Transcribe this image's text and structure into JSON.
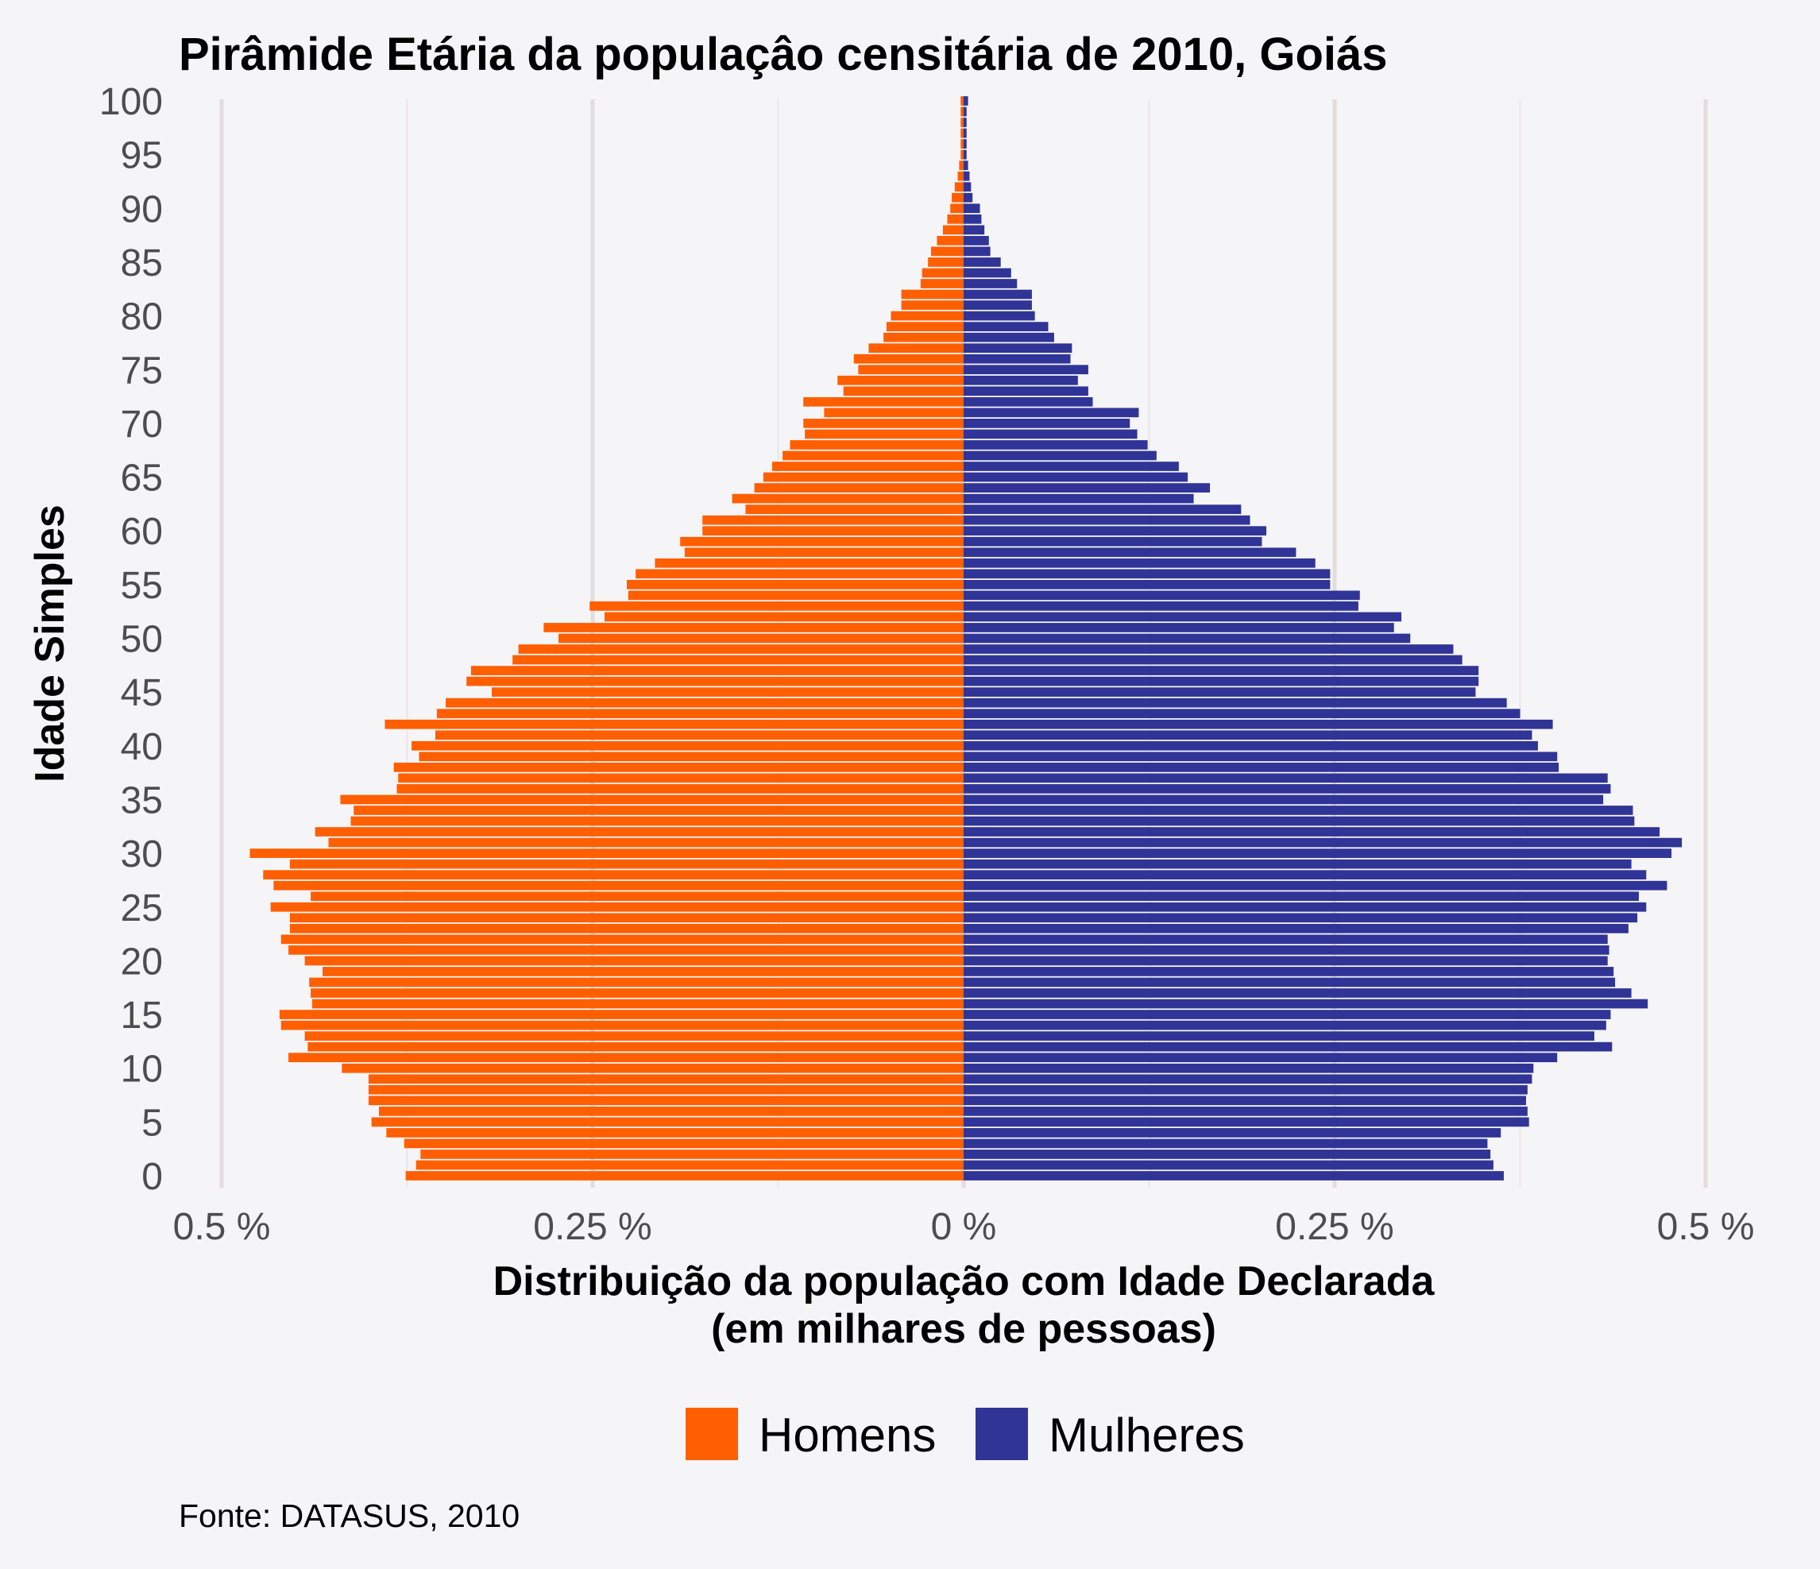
{
  "chart_data": {
    "type": "bar",
    "orientation": "horizontal",
    "title": "Pirâmide Etária da populaçâo censitária de 2010, Goiás",
    "xlabel": "Distribuição da população com Idade Declarada",
    "xlabel_line2": "(em milhares de pessoas)",
    "ylabel": "Idade Simples",
    "caption": "Fonte: DATASUS, 2010",
    "xlim": [
      -0.5,
      0.5
    ],
    "x_ticks": [
      {
        "value": -0.5,
        "label": "0.5 %"
      },
      {
        "value": -0.25,
        "label": "0.25 %"
      },
      {
        "value": 0,
        "label": "0 %"
      },
      {
        "value": 0.25,
        "label": "0.25 %"
      },
      {
        "value": 0.5,
        "label": "0.5 %"
      }
    ],
    "y_ticks": [
      {
        "value": 0,
        "label": "0"
      },
      {
        "value": 5,
        "label": "5"
      },
      {
        "value": 10,
        "label": "10"
      },
      {
        "value": 15,
        "label": "15"
      },
      {
        "value": 20,
        "label": "20"
      },
      {
        "value": 25,
        "label": "25"
      },
      {
        "value": 30,
        "label": "30"
      },
      {
        "value": 35,
        "label": "35"
      },
      {
        "value": 40,
        "label": "40"
      },
      {
        "value": 45,
        "label": "45"
      },
      {
        "value": 50,
        "label": "50"
      },
      {
        "value": 55,
        "label": "55"
      },
      {
        "value": 60,
        "label": "60"
      },
      {
        "value": 65,
        "label": "65"
      },
      {
        "value": 70,
        "label": "70"
      },
      {
        "value": 75,
        "label": "75"
      },
      {
        "value": 80,
        "label": "80"
      },
      {
        "value": 85,
        "label": "85"
      },
      {
        "value": 90,
        "label": "90"
      },
      {
        "value": 95,
        "label": "95"
      },
      {
        "value": 100,
        "label": "100"
      }
    ],
    "grid": true,
    "legend_position": "bottom",
    "ages": [
      0,
      1,
      2,
      3,
      4,
      5,
      6,
      7,
      8,
      9,
      10,
      11,
      12,
      13,
      14,
      15,
      16,
      17,
      18,
      19,
      20,
      21,
      22,
      23,
      24,
      25,
      26,
      27,
      28,
      29,
      30,
      31,
      32,
      33,
      34,
      35,
      36,
      37,
      38,
      39,
      40,
      41,
      42,
      43,
      44,
      45,
      46,
      47,
      48,
      49,
      50,
      51,
      52,
      53,
      54,
      55,
      56,
      57,
      58,
      59,
      60,
      61,
      62,
      63,
      64,
      65,
      66,
      67,
      68,
      69,
      70,
      71,
      72,
      73,
      74,
      75,
      76,
      77,
      78,
      79,
      80,
      81,
      82,
      83,
      84,
      85,
      86,
      87,
      88,
      89,
      90,
      91,
      92,
      93,
      94,
      95,
      96,
      97,
      98,
      99,
      100
    ],
    "series": [
      {
        "name": "Homens",
        "color": "#ff5f00",
        "values": [
          0.376,
          0.369,
          0.366,
          0.377,
          0.389,
          0.399,
          0.394,
          0.401,
          0.401,
          0.401,
          0.419,
          0.455,
          0.442,
          0.444,
          0.46,
          0.461,
          0.439,
          0.44,
          0.441,
          0.432,
          0.444,
          0.455,
          0.46,
          0.454,
          0.454,
          0.467,
          0.44,
          0.465,
          0.472,
          0.454,
          0.481,
          0.428,
          0.437,
          0.413,
          0.411,
          0.42,
          0.382,
          0.381,
          0.384,
          0.367,
          0.372,
          0.356,
          0.39,
          0.355,
          0.349,
          0.318,
          0.335,
          0.332,
          0.304,
          0.3,
          0.273,
          0.283,
          0.242,
          0.252,
          0.226,
          0.227,
          0.221,
          0.208,
          0.188,
          0.191,
          0.176,
          0.176,
          0.147,
          0.156,
          0.141,
          0.135,
          0.129,
          0.122,
          0.117,
          0.107,
          0.108,
          0.094,
          0.108,
          0.081,
          0.085,
          0.071,
          0.074,
          0.064,
          0.054,
          0.052,
          0.049,
          0.042,
          0.042,
          0.029,
          0.028,
          0.024,
          0.022,
          0.018,
          0.014,
          0.011,
          0.009,
          0.008,
          0.006,
          0.004,
          0.003,
          0.002,
          0.002,
          0.002,
          0.002,
          0.002,
          0.002
        ]
      },
      {
        "name": "Mulheres",
        "color": "#303496",
        "values": [
          0.364,
          0.357,
          0.355,
          0.353,
          0.362,
          0.381,
          0.38,
          0.379,
          0.38,
          0.383,
          0.384,
          0.4,
          0.437,
          0.425,
          0.433,
          0.436,
          0.461,
          0.45,
          0.439,
          0.438,
          0.434,
          0.435,
          0.434,
          0.448,
          0.454,
          0.46,
          0.455,
          0.474,
          0.46,
          0.45,
          0.477,
          0.484,
          0.469,
          0.452,
          0.451,
          0.431,
          0.436,
          0.434,
          0.401,
          0.4,
          0.387,
          0.383,
          0.397,
          0.375,
          0.366,
          0.345,
          0.347,
          0.347,
          0.336,
          0.33,
          0.301,
          0.29,
          0.295,
          0.266,
          0.267,
          0.247,
          0.247,
          0.237,
          0.224,
          0.201,
          0.204,
          0.193,
          0.187,
          0.155,
          0.166,
          0.151,
          0.145,
          0.13,
          0.124,
          0.117,
          0.112,
          0.118,
          0.087,
          0.084,
          0.077,
          0.084,
          0.072,
          0.073,
          0.061,
          0.057,
          0.048,
          0.046,
          0.046,
          0.036,
          0.032,
          0.025,
          0.018,
          0.017,
          0.014,
          0.012,
          0.011,
          0.006,
          0.005,
          0.004,
          0.003,
          0.002,
          0.002,
          0.002,
          0.002,
          0.002,
          0.003
        ]
      }
    ]
  }
}
